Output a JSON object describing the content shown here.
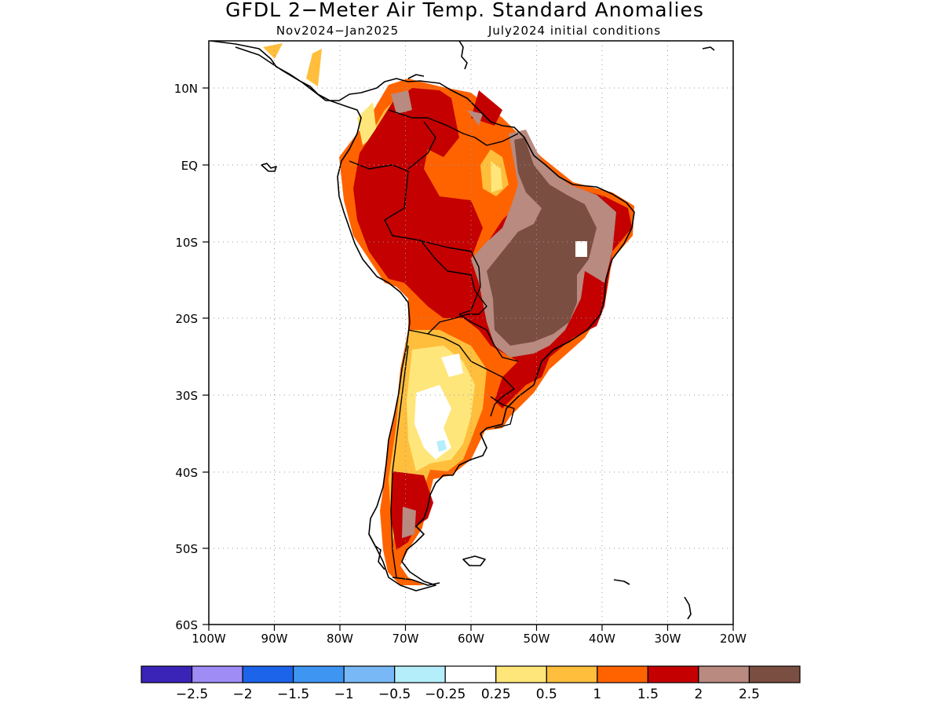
{
  "title": "GFDL 2−Meter Air Temp. Standard Anomalies",
  "subtitle_period": "Nov2024−Jan2025",
  "subtitle_init": "July2024 initial conditions",
  "lat_labels": [
    "10N",
    "EQ",
    "10S",
    "20S",
    "30S",
    "40S",
    "50S",
    "60S"
  ],
  "lon_labels": [
    "100W",
    "90W",
    "80W",
    "70W",
    "60W",
    "50W",
    "40W",
    "30W",
    "20W"
  ],
  "colorbar": {
    "colors": [
      "#3a24b8",
      "#a08cf5",
      "#1c64ea",
      "#3f95f2",
      "#78b8f6",
      "#b4eefa",
      "#ffffff",
      "#ffe67a",
      "#ffbe3c",
      "#ff6300",
      "#c40000",
      "#b88a80",
      "#7b4e42"
    ],
    "labels": [
      "−2.5",
      "−2",
      "−1.5",
      "−1",
      "−0.5",
      "−0.25",
      "0.25",
      "0.5",
      "1",
      "1.5",
      "2",
      "2.5"
    ]
  },
  "shading_colors": {
    "c025": "#ffffff",
    "c05": "#ffe67a",
    "c1": "#ffbe3c",
    "c15": "#ff6300",
    "c2": "#c40000",
    "c25": "#b88a80",
    "c3": "#7b4e42",
    "cneg": "#b4eefa"
  }
}
